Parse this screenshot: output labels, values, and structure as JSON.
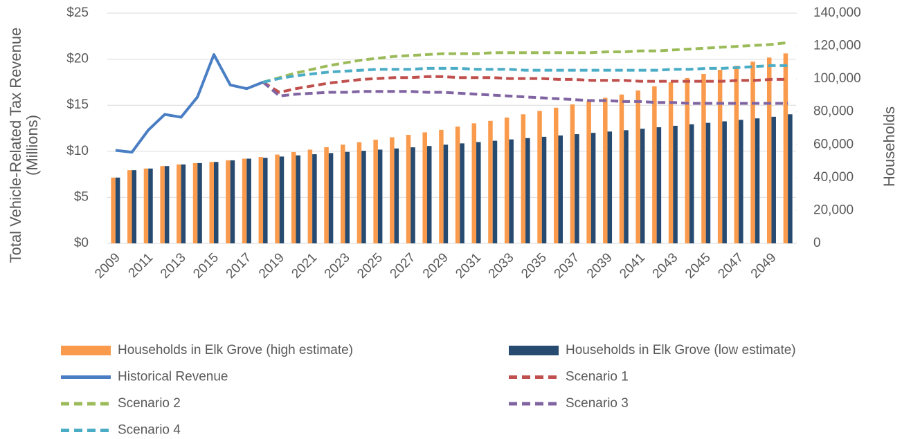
{
  "chart_data": {
    "type": "combo",
    "ylabel": [
      "Total Vehicle-Related Tax Revenue",
      "(Millions)"
    ],
    "y2label": "Households",
    "categories": [
      "2009",
      null,
      "2011",
      null,
      "2013",
      null,
      "2015",
      null,
      "2017",
      null,
      "2019",
      null,
      "2021",
      null,
      "2023",
      null,
      "2025",
      null,
      "2027",
      null,
      "2029",
      null,
      "2031",
      null,
      "2033",
      null,
      "2035",
      null,
      "2037",
      null,
      "2039",
      null,
      "2041",
      null,
      "2043",
      null,
      "2045",
      null,
      "2047",
      null,
      "2049",
      null
    ],
    "ylim": [
      0,
      25
    ],
    "yticks": [
      {
        "value": 0,
        "label": "$0"
      },
      {
        "value": 5,
        "label": "$5"
      },
      {
        "value": 10,
        "label": "$10"
      },
      {
        "value": 15,
        "label": "$15"
      },
      {
        "value": 20,
        "label": "$20"
      },
      {
        "value": 25,
        "label": "$25"
      }
    ],
    "y2lim": [
      0,
      140000
    ],
    "y2ticks": [
      0,
      {
        "value": 20000,
        "label": "20,000"
      },
      {
        "value": 40000,
        "label": "40,000"
      },
      {
        "value": 60000,
        "label": "60,000"
      },
      {
        "value": 80000,
        "label": "80,000"
      },
      {
        "value": 100000,
        "label": "100,000"
      },
      {
        "value": 120000,
        "label": "120,000"
      },
      {
        "value": 140000,
        "label": "140,000"
      }
    ],
    "grid": true,
    "legend": "bottom",
    "series": [
      {
        "name": "Households in Elk Grove (high estimate)",
        "type": "bar",
        "axis": "y2",
        "color": "#f99a4c",
        "values": [
          40000,
          44500,
          45500,
          47000,
          48000,
          48800,
          49500,
          50500,
          51500,
          52500,
          54000,
          55500,
          57000,
          58500,
          60000,
          61500,
          63000,
          64500,
          66000,
          67500,
          69000,
          71000,
          73000,
          74500,
          76500,
          78500,
          80500,
          82500,
          84500,
          86500,
          88500,
          90500,
          93000,
          95500,
          98000,
          100500,
          103000,
          105500,
          108000,
          110500,
          113000,
          115500
        ]
      },
      {
        "name": "Households in Elk Grove (low estimate)",
        "type": "bar",
        "axis": "y2",
        "color": "#264a70",
        "values": [
          40000,
          44500,
          45500,
          47000,
          48000,
          48800,
          49500,
          50500,
          51500,
          52000,
          52800,
          53500,
          54200,
          54900,
          55600,
          56300,
          57000,
          57700,
          58400,
          59200,
          60000,
          60800,
          61600,
          62400,
          63200,
          64000,
          64800,
          65600,
          66400,
          67200,
          68000,
          68800,
          69700,
          70600,
          71500,
          72400,
          73300,
          74200,
          75100,
          76000,
          77000,
          78500
        ]
      },
      {
        "name": "Historical Revenue",
        "type": "line",
        "dashed": false,
        "color": "#4a7ec4",
        "values": [
          10.1,
          9.9,
          12.3,
          14.0,
          13.7,
          15.9,
          20.5,
          17.2,
          16.8,
          17.5,
          null,
          null,
          null,
          null,
          null,
          null,
          null,
          null,
          null,
          null,
          null,
          null,
          null,
          null,
          null,
          null,
          null,
          null,
          null,
          null,
          null,
          null,
          null,
          null,
          null,
          null,
          null,
          null,
          null,
          null,
          null,
          null
        ]
      },
      {
        "name": "Scenario 1",
        "type": "line",
        "dashed": true,
        "color": "#c0504d",
        "values": [
          null,
          null,
          null,
          null,
          null,
          null,
          null,
          null,
          null,
          17.5,
          16.4,
          16.8,
          17.1,
          17.4,
          17.6,
          17.8,
          17.9,
          18.0,
          18.0,
          18.1,
          18.1,
          18.0,
          18.0,
          18.0,
          17.9,
          17.9,
          17.9,
          17.8,
          17.8,
          17.7,
          17.7,
          17.7,
          17.6,
          17.6,
          17.6,
          17.6,
          17.6,
          17.6,
          17.7,
          17.7,
          17.8,
          17.8
        ]
      },
      {
        "name": "Scenario 2",
        "type": "line",
        "dashed": true,
        "color": "#9bbb59",
        "values": [
          null,
          null,
          null,
          null,
          null,
          null,
          null,
          null,
          null,
          17.5,
          18.0,
          18.5,
          18.9,
          19.3,
          19.6,
          19.9,
          20.1,
          20.3,
          20.4,
          20.5,
          20.6,
          20.6,
          20.6,
          20.7,
          20.7,
          20.7,
          20.7,
          20.7,
          20.7,
          20.7,
          20.8,
          20.8,
          20.9,
          20.9,
          21.0,
          21.1,
          21.2,
          21.3,
          21.4,
          21.5,
          21.6,
          21.8
        ]
      },
      {
        "name": "Scenario 3",
        "type": "line",
        "dashed": true,
        "color": "#8064a2",
        "values": [
          null,
          null,
          null,
          null,
          null,
          null,
          null,
          null,
          null,
          17.5,
          16.0,
          16.2,
          16.3,
          16.4,
          16.4,
          16.5,
          16.5,
          16.5,
          16.5,
          16.4,
          16.4,
          16.3,
          16.2,
          16.1,
          16.0,
          15.9,
          15.8,
          15.7,
          15.6,
          15.5,
          15.5,
          15.4,
          15.4,
          15.3,
          15.3,
          15.2,
          15.2,
          15.2,
          15.2,
          15.2,
          15.2,
          15.2
        ]
      },
      {
        "name": "Scenario 4",
        "type": "line",
        "dashed": true,
        "color": "#4bacc6",
        "values": [
          null,
          null,
          null,
          null,
          null,
          null,
          null,
          null,
          null,
          17.5,
          17.9,
          18.2,
          18.4,
          18.6,
          18.7,
          18.8,
          18.9,
          18.9,
          18.9,
          19.0,
          19.0,
          19.0,
          18.9,
          18.9,
          18.9,
          18.8,
          18.8,
          18.8,
          18.8,
          18.8,
          18.8,
          18.8,
          18.8,
          18.8,
          18.9,
          18.9,
          19.0,
          19.0,
          19.1,
          19.2,
          19.3,
          19.3
        ]
      }
    ]
  }
}
